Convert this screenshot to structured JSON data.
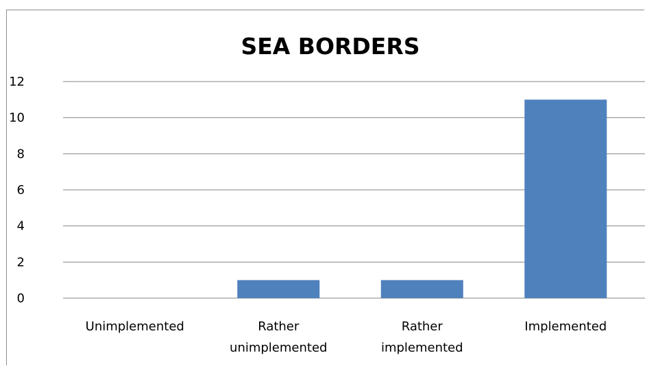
{
  "chart_data": {
    "type": "bar",
    "title": "SEA BORDERS",
    "categories": [
      [
        "Unimplemented"
      ],
      [
        "Rather",
        "unimplemented"
      ],
      [
        "Rather",
        "implemented"
      ],
      [
        "Implemented"
      ]
    ],
    "values": [
      0,
      1,
      1,
      11
    ],
    "ylim": [
      0,
      12
    ],
    "yticks": [
      0,
      2,
      4,
      6,
      8,
      10,
      12
    ],
    "grid": true,
    "legend": "none",
    "bar_color": "#4F81BD",
    "gridline_color": "#868686"
  }
}
